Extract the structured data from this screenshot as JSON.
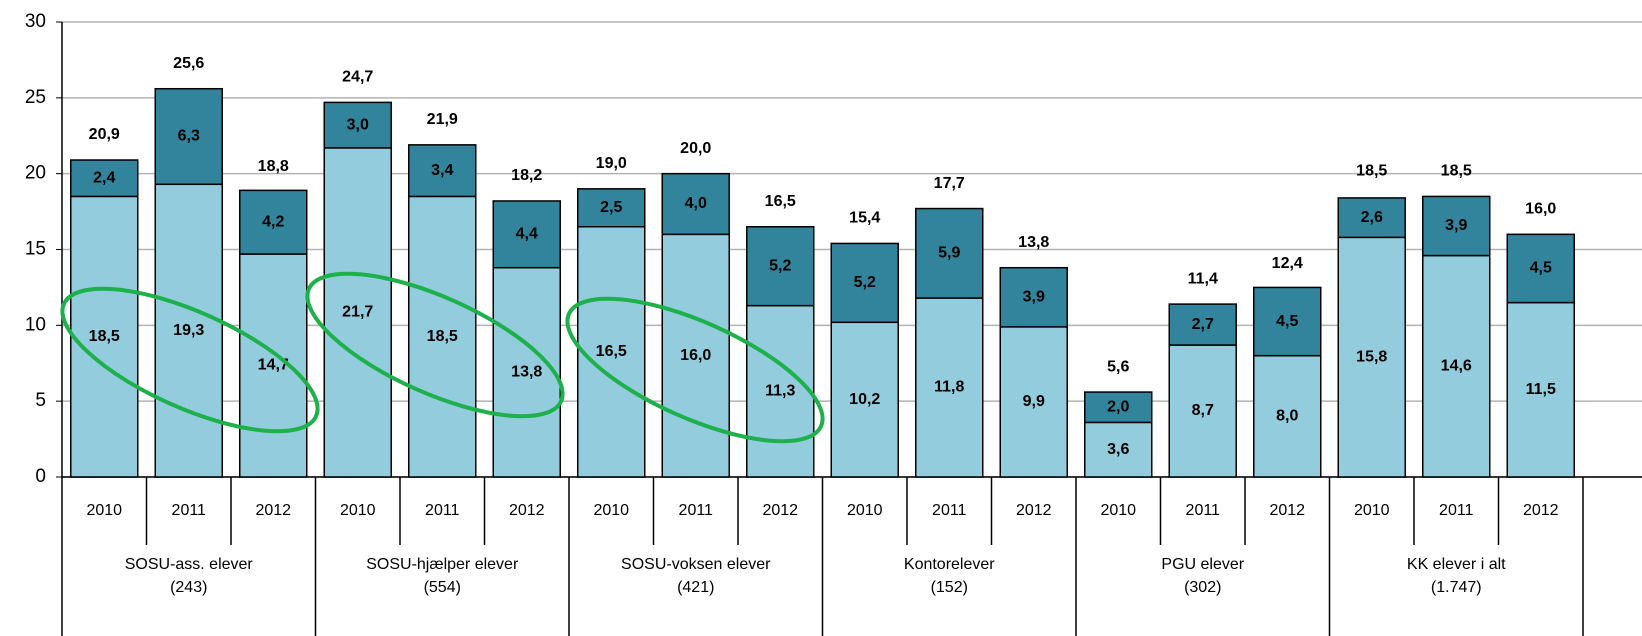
{
  "chart_data": {
    "type": "stacked_bar",
    "categories": [
      "2010",
      "2011",
      "2012",
      "2010",
      "2011",
      "2012",
      "2010",
      "2011",
      "2012",
      "2010",
      "2011",
      "2012",
      "2010",
      "2011",
      "2012",
      "2010",
      "2011",
      "2012"
    ],
    "groups": [
      {
        "name": "SOSU-ass. elever",
        "count": "(243)"
      },
      {
        "name": "SOSU-hjælper elever",
        "count": "(554)"
      },
      {
        "name": "SOSU-voksen elever",
        "count": "(421)"
      },
      {
        "name": "Kontorelever",
        "count": "(152)"
      },
      {
        "name": "PGU elever",
        "count": "(302)"
      },
      {
        "name": "KK elever i alt",
        "count": "(1.747)"
      }
    ],
    "series": [
      {
        "color": "#93cddd",
        "values": [
          18.5,
          19.3,
          14.7,
          21.7,
          18.5,
          13.8,
          16.5,
          16.0,
          11.3,
          10.2,
          11.8,
          9.9,
          3.6,
          8.7,
          8.0,
          15.8,
          14.6,
          11.5
        ],
        "value_labels": [
          "18,5",
          "19,3",
          "14,7",
          "21,7",
          "18,5",
          "13,8",
          "16,5",
          "16,0",
          "11,3",
          "10,2",
          "11,8",
          "9,9",
          "3,6",
          "8,7",
          "8,0",
          "15,8",
          "14,6",
          "11,5"
        ]
      },
      {
        "color": "#31849b",
        "values": [
          2.4,
          6.3,
          4.2,
          3.0,
          3.4,
          4.4,
          2.5,
          4.0,
          5.2,
          5.2,
          5.9,
          3.9,
          2.0,
          2.7,
          4.5,
          2.6,
          3.9,
          4.5
        ],
        "value_labels": [
          "2,4",
          "6,3",
          "4,2",
          "3,0",
          "3,4",
          "4,4",
          "2,5",
          "4,0",
          "5,2",
          "5,2",
          "5,9",
          "3,9",
          "2,0",
          "2,7",
          "4,5",
          "2,6",
          "3,9",
          "4,5"
        ]
      }
    ],
    "totals": {
      "values": [
        20.9,
        25.6,
        18.8,
        24.7,
        21.9,
        18.2,
        19.0,
        20.0,
        16.5,
        15.4,
        17.7,
        13.8,
        5.6,
        11.4,
        12.4,
        18.5,
        18.5,
        16.0
      ],
      "value_labels": [
        "20,9",
        "25,6",
        "18,8",
        "24,7",
        "21,9",
        "18,2",
        "19,0",
        "20,0",
        "16,5",
        "15,4",
        "17,7",
        "13,8",
        "5,6",
        "11,4",
        "12,4",
        "18,5",
        "18,5",
        "16,0"
      ]
    },
    "ylim": [
      0,
      30
    ],
    "yticks": [
      0,
      5,
      10,
      15,
      20,
      25,
      30
    ],
    "grid": true
  }
}
